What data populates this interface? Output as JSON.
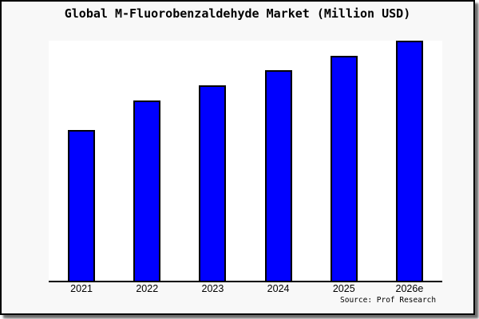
{
  "title": "Global M-Fluorobenzaldehyde Market (Million USD)",
  "source": "Source: Prof Research",
  "colors": {
    "bar_fill": "#0000ff",
    "bar_border": "#000000",
    "plot_background": "#ffffff",
    "frame_background": "#f8f8f8",
    "frame_border": "#000000",
    "axis_line": "#000000"
  },
  "chart_data": {
    "type": "bar",
    "title": "Global M-Fluorobenzaldehyde Market (Million USD)",
    "categories": [
      "2021",
      "2022",
      "2023",
      "2024",
      "2025",
      "2026e"
    ],
    "values": [
      62.8,
      75.1,
      81.4,
      87.7,
      93.7,
      100
    ],
    "values_note": "y-axis shows no ticks, labels or gridlines; values are relative bar heights as percent of the tallest (2026e) bar",
    "xlabel": "",
    "ylabel": "",
    "ylim": [
      0,
      100.7
    ],
    "grid": false,
    "legend": false,
    "bar_color": "#0000ff",
    "bar_border_color": "#000000",
    "source_note": "Source: Prof Research"
  }
}
